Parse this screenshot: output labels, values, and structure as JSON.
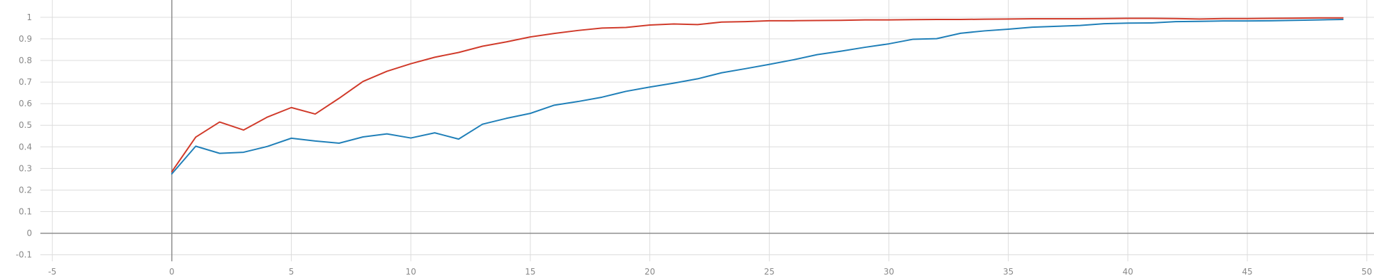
{
  "chart_data": {
    "type": "line",
    "title": "",
    "xlabel": "",
    "ylabel": "",
    "xlim": [
      -5.5,
      50.3
    ],
    "ylim": [
      -0.13,
      1.08
    ],
    "x_ticks": [
      -5,
      0,
      5,
      10,
      15,
      20,
      25,
      30,
      35,
      40,
      45,
      50
    ],
    "y_ticks": [
      -0.1,
      0,
      0.1,
      0.2,
      0.3,
      0.4,
      0.5,
      0.6,
      0.7,
      0.8,
      0.9,
      1
    ],
    "x_tick_labels": [
      "-5",
      "0",
      "5",
      "10",
      "15",
      "20",
      "25",
      "30",
      "35",
      "40",
      "45",
      "50"
    ],
    "y_tick_labels": [
      "-0.1",
      "0",
      "0.1",
      "0.2",
      "0.3",
      "0.4",
      "0.5",
      "0.6",
      "0.7",
      "0.8",
      "0.9",
      "1"
    ],
    "grid": true,
    "legend": "none",
    "x": [
      0,
      1,
      2,
      3,
      4,
      5,
      6,
      7,
      8,
      9,
      10,
      11,
      12,
      13,
      14,
      15,
      16,
      17,
      18,
      19,
      20,
      21,
      22,
      23,
      24,
      25,
      26,
      27,
      28,
      29,
      30,
      31,
      32,
      33,
      34,
      35,
      36,
      37,
      38,
      39,
      40,
      41,
      42,
      43,
      44,
      45,
      46,
      47,
      48,
      49
    ],
    "series": [
      {
        "color": "#d03a2a",
        "values": [
          0.285,
          0.445,
          0.515,
          0.478,
          0.538,
          0.582,
          0.552,
          0.625,
          0.703,
          0.75,
          0.785,
          0.815,
          0.837,
          0.866,
          0.886,
          0.909,
          0.925,
          0.939,
          0.95,
          0.953,
          0.964,
          0.969,
          0.966,
          0.978,
          0.98,
          0.984,
          0.984,
          0.985,
          0.986,
          0.988,
          0.988,
          0.989,
          0.99,
          0.99,
          0.991,
          0.992,
          0.993,
          0.993,
          0.993,
          0.994,
          0.995,
          0.995,
          0.994,
          0.992,
          0.994,
          0.994,
          0.995,
          0.996,
          0.997,
          0.997
        ]
      },
      {
        "color": "#1f7fb8",
        "values": [
          0.275,
          0.403,
          0.37,
          0.375,
          0.402,
          0.44,
          0.427,
          0.417,
          0.446,
          0.46,
          0.441,
          0.465,
          0.436,
          0.505,
          0.532,
          0.555,
          0.593,
          0.61,
          0.63,
          0.657,
          0.677,
          0.695,
          0.715,
          0.743,
          0.762,
          0.782,
          0.803,
          0.827,
          0.843,
          0.861,
          0.877,
          0.898,
          0.901,
          0.926,
          0.937,
          0.945,
          0.954,
          0.958,
          0.962,
          0.97,
          0.973,
          0.974,
          0.98,
          0.981,
          0.983,
          0.983,
          0.984,
          0.986,
          0.988,
          0.99
        ]
      }
    ]
  }
}
